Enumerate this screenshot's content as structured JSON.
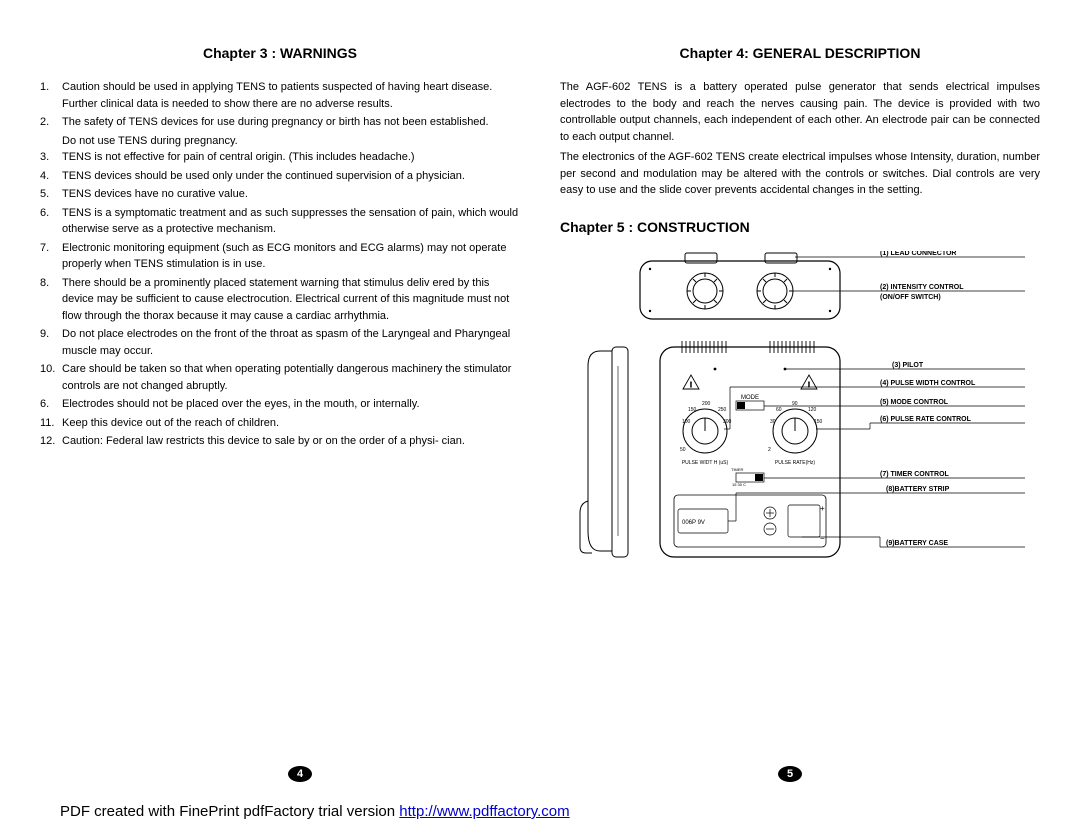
{
  "left": {
    "heading": "Chapter 3 : WARNINGS",
    "items": [
      {
        "n": "1.",
        "t": "Caution should be used in applying TENS to patients suspected of having heart disease.  Further clinical data is needed to show there are no adverse results."
      },
      {
        "n": "2.",
        "t": "The safety of TENS devices for use during pregnancy or birth has not been established."
      },
      {
        "n": "",
        "t": "Do not use TENS during pregnancy.",
        "sub": true
      },
      {
        "n": "3.",
        "t": "TENS is not effective for pain of central origin. (This includes headache.)"
      },
      {
        "n": "4.",
        "t": "TENS devices should be used only under the continued supervision of a physician."
      },
      {
        "n": "5.",
        "t": "TENS devices have no curative value."
      },
      {
        "n": "6.",
        "t": "TENS is a symptomatic treatment and as such suppresses the sensation of pain, which would otherwise serve as a protective mechanism."
      },
      {
        "n": "7.",
        "t": "Electronic monitoring equipment (such as ECG monitors and ECG alarms) may not operate properly when TENS stimulation is in use."
      },
      {
        "n": "8.",
        "t": "There should be a prominently placed statement warning that stimulus deliv ered by this device may be sufficient to cause electrocution. Electrical current of this magnitude must not flow through the thorax because it may cause a cardiac arrhythmia."
      },
      {
        "n": "9.",
        "t": "Do not place electrodes on the front of the throat as spasm of the Laryngeal and Pharyngeal muscle may occur."
      },
      {
        "n": "10.",
        "t": "Care should be taken so that when operating potentially dangerous machinery the stimulator controls are not changed abruptly."
      },
      {
        "n": "6.",
        "t": "Electrodes should not be placed over the eyes, in the mouth, or internally."
      },
      {
        "n": "11.",
        "t": "Keep this device out of the reach of children."
      },
      {
        "n": "12.",
        "t": "Caution: Federal law restricts this device to sale by or on the order of a physi- cian."
      }
    ],
    "pageNum": "4"
  },
  "right": {
    "heading1": "Chapter 4: GENERAL DESCRIPTION",
    "para1": "The AGF-602 TENS is a battery operated pulse generator that sends electrical impulses electrodes to the body and reach the nerves causing pain. The device is provided with two controllable output channels, each independent of each other. An electrode pair can be connected to each output channel.",
    "para2": "The electronics of the AGF-602 TENS create electrical impulses whose Intensity, duration, number per second and modulation may be altered with the controls or switches. Dial controls are very easy to use and the slide cover prevents accidental changes in the setting.",
    "heading2": "Chapter 5 : CONSTRUCTION",
    "pageNum": "5",
    "labels": {
      "l1": "(1) LEAD CONNECTOR",
      "l2a": "(2) INTENSITY CONTROL",
      "l2b": "(ON/OFF SWITCH)",
      "l3": "(3) PILOT",
      "l4": "(4) PULSE WIDTH CONTROL",
      "l5": "(5) MODE CONTROL",
      "l6": "(6) PULSE RATE CONTROL",
      "l7": "(7) TIMER CONTROL",
      "l8": "(8)BATTERY STRIP",
      "l9": "(9)BATTERY CASE",
      "mode": "MODE",
      "pw": "PULSE WIDT H (uS)",
      "pr": "PULSE RATE(Hz)",
      "batt": "006P 9V",
      "d50a": "50",
      "d100": "100",
      "d150": "150",
      "d200": "200",
      "d250": "250",
      "d300": "300",
      "r2": "2",
      "r30": "30",
      "r60": "60",
      "r90": "90",
      "r120": "120",
      "r150": "150"
    }
  },
  "footer": {
    "text": "PDF created with FinePrint pdfFactory trial version ",
    "linkText": "http://www.pdffactory.com",
    "linkHref": "http://www.pdffactory.com"
  }
}
